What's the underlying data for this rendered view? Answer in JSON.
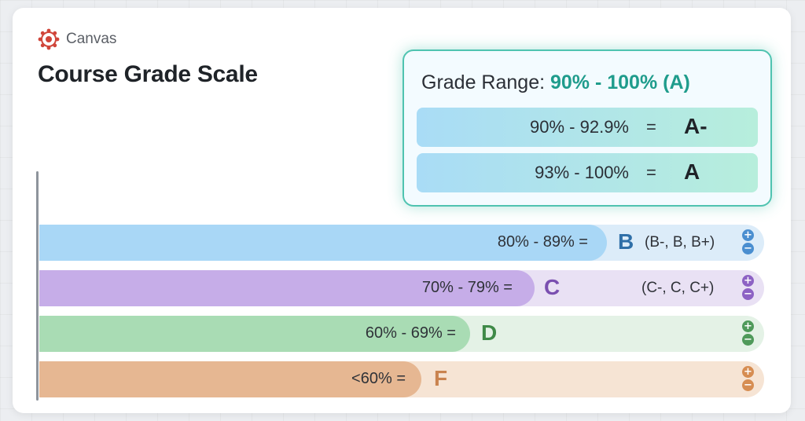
{
  "header": {
    "app_name": "Canvas",
    "title": "Course Grade Scale"
  },
  "tooltip": {
    "label": "Grade Range:",
    "range": "90% - 100% (A)",
    "rows": [
      {
        "range": "90% - 92.9%",
        "eq": "=",
        "letter": "A-"
      },
      {
        "range": "93% - 100%",
        "eq": "=",
        "letter": "A"
      }
    ]
  },
  "grades": [
    {
      "range": "80% - 89%  =",
      "letter": "B",
      "sub": "(B-, B, B+)",
      "color": "#2f6fa8"
    },
    {
      "range": "70% - 79%  =",
      "letter": "C",
      "sub": "(C-, C, C+)",
      "color": "#7a4fb0"
    },
    {
      "range": "60% - 69%  =",
      "letter": "D",
      "sub": "",
      "color": "#3f8a48"
    },
    {
      "range": "<60%  =",
      "letter": "F",
      "sub": "",
      "color": "#c9834f"
    }
  ],
  "controls": {
    "plus": "+",
    "minus": "−"
  },
  "colors": {
    "accent": "#1f9c8c",
    "b_fill": "#a9d7f6",
    "b_track": "#dcecf9",
    "c_fill": "#c6ade8",
    "c_track": "#e9e1f4",
    "d_fill": "#a9dcb4",
    "d_track": "#e4f2e6",
    "f_fill": "#e6b792",
    "f_track": "#f6e4d4"
  }
}
